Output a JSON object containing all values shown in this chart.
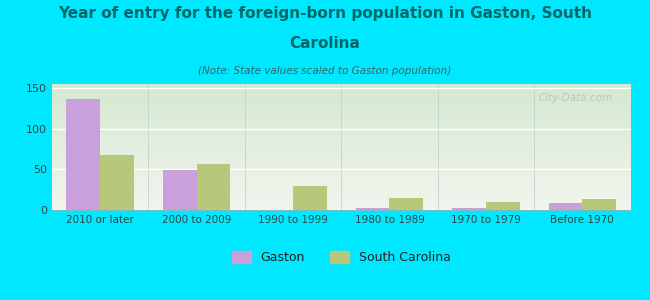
{
  "title_line1": "Year of entry for the foreign-born population in Gaston, South",
  "title_line2": "Carolina",
  "subtitle": "(Note: State values scaled to Gaston population)",
  "categories": [
    "2010 or later",
    "2000 to 2009",
    "1990 to 1999",
    "1980 to 1989",
    "1970 to 1979",
    "Before 1970"
  ],
  "gaston_values": [
    136,
    49,
    0,
    2,
    2,
    9
  ],
  "sc_values": [
    68,
    57,
    30,
    15,
    10,
    14
  ],
  "gaston_color": "#c9a0dc",
  "sc_color": "#b8c87a",
  "background_color": "#00e8ff",
  "plot_bg_top": "#d4e8d0",
  "plot_bg_bottom": "#f2f5ee",
  "title_color": "#006666",
  "subtitle_color": "#336666",
  "ylabel_ticks": [
    0,
    50,
    100,
    150
  ],
  "ylim": [
    0,
    155
  ],
  "bar_width": 0.35,
  "watermark": "City-Data.com",
  "legend_gaston": "Gaston",
  "legend_sc": "South Carolina"
}
